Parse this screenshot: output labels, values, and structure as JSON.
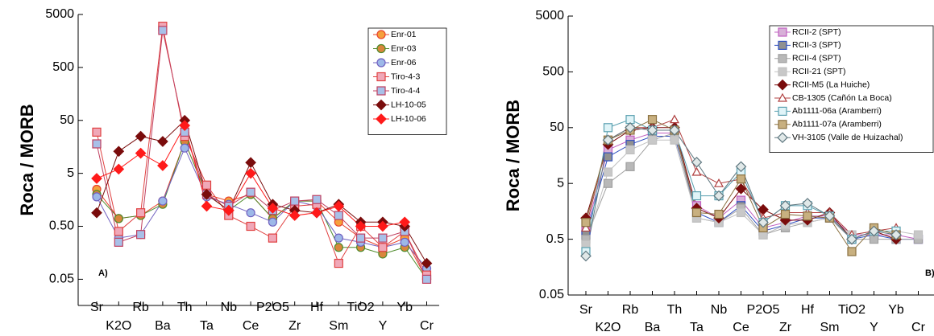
{
  "chart_data": [
    {
      "type": "line",
      "ylabel": "Roca / MORB",
      "annotation": "A)",
      "log_y": true,
      "legend": "upper right",
      "categories": [
        "Sr",
        "K2O",
        "Rb",
        "Ba",
        "Th",
        "Ta",
        "Nb",
        "Ce",
        "P2O5",
        "Zr",
        "Hf",
        "Sm",
        "TiO2",
        "Y",
        "Yb",
        "Cr"
      ],
      "ylim": [
        0.016,
        5000
      ],
      "yticks": [
        0.05,
        {
          "value": 0.5,
          "label": "0.50"
        },
        5,
        50,
        500,
        5000
      ],
      "series": [
        {
          "name": "Enr-01",
          "color": "#e8412b",
          "fill": "#f5a03c",
          "marker": "circle",
          "values": [
            2.5,
            0.7,
            0.8,
            1.5,
            20,
            2,
            1.5,
            2,
            0.7,
            1.5,
            1.5,
            0.6,
            0.3,
            0.2,
            0.3,
            0.05
          ]
        },
        {
          "name": "Enr-03",
          "color": "#4d8a2a",
          "fill": "#d9863c",
          "marker": "circle",
          "values": [
            2,
            0.7,
            0.8,
            1.3,
            20,
            2,
            1,
            2,
            0.7,
            1.5,
            1.5,
            0.2,
            0.2,
            0.15,
            0.2,
            0.05
          ]
        },
        {
          "name": "Enr-06",
          "color": "#7060c0",
          "fill": "#9db8e8",
          "marker": "circle",
          "values": [
            1.8,
            0.3,
            0.35,
            1.5,
            15,
            1.8,
            1.3,
            0.9,
            0.6,
            1.5,
            1.2,
            0.3,
            0.25,
            0.2,
            0.25,
            0.08
          ]
        },
        {
          "name": "Tiro-4-3",
          "color": "#e04040",
          "fill": "#f0a8b8",
          "marker": "square",
          "values": [
            30,
            0.4,
            0.9,
            3000,
            25,
            3,
            0.8,
            0.5,
            0.3,
            1.2,
            1.3,
            0.1,
            0.5,
            0.2,
            0.4,
            0.06
          ]
        },
        {
          "name": "Tiro-4-4",
          "color": "#c04060",
          "fill": "#a8c0e8",
          "marker": "square",
          "values": [
            18,
            0.25,
            0.35,
            2500,
            30,
            2,
            1.2,
            2.2,
            1.0,
            1.5,
            1.6,
            0.8,
            0.3,
            0.3,
            0.4,
            0.05
          ]
        },
        {
          "name": "LH-10-05",
          "color": "#7a0c0c",
          "fill": "#7a0c0c",
          "marker": "diamond",
          "values": [
            0.9,
            13,
            25,
            20,
            50,
            2,
            1,
            8,
            1.3,
            1,
            0.9,
            1.3,
            0.6,
            0.6,
            0.5,
            0.1
          ]
        },
        {
          "name": "LH-10-06",
          "color": "#ff1a1a",
          "fill": "#ff1a1a",
          "marker": "diamond",
          "values": [
            4,
            6,
            12,
            7,
            40,
            1.2,
            1,
            5,
            1.1,
            0.8,
            0.9,
            1.2,
            0.5,
            0.5,
            0.6,
            null
          ]
        }
      ]
    },
    {
      "type": "line",
      "ylabel": "Roca / MORB",
      "annotation": "B)",
      "log_y": true,
      "legend": "upper right",
      "categories": [
        "Sr",
        "K2O",
        "Rb",
        "Ba",
        "Th",
        "Ta",
        "Nb",
        "Ce",
        "P2O5",
        "Zr",
        "Hf",
        "Sm",
        "TiO2",
        "Y",
        "Yb",
        "Cr"
      ],
      "ylim": [
        0.05,
        5000
      ],
      "yticks": [
        0.05,
        0.5,
        5,
        50,
        500,
        5000
      ],
      "series": [
        {
          "name": "RCII-2 (SPT)",
          "color": "#c060c0",
          "fill": "#d8b0d8",
          "marker": "square",
          "values": [
            0.7,
            20,
            30,
            40,
            40,
            2,
            1.2,
            2.5,
            0.8,
            1,
            1.3,
            1.3,
            0.6,
            0.6,
            0.6,
            0.5
          ]
        },
        {
          "name": "RCII-3 (SPT)",
          "color": "#3050c0",
          "fill": "#909090",
          "marker": "square",
          "values": [
            0.6,
            15,
            25,
            35,
            35,
            1.5,
            1,
            2,
            0.7,
            0.9,
            1.2,
            1.2,
            0.5,
            0.6,
            0.5,
            0.5
          ]
        },
        {
          "name": "RCII-4 (SPT)",
          "color": "#a0a0a0",
          "fill": "#b8b8b8",
          "marker": "square",
          "values": [
            0.5,
            5,
            10,
            30,
            40,
            1.2,
            1,
            1.8,
            0.6,
            0.8,
            1,
            1.2,
            0.5,
            0.5,
            0.5,
            0.5
          ]
        },
        {
          "name": "RCII-21 (SPT)",
          "color": "#c0c0c0",
          "fill": "#c8c8c8",
          "marker": "square",
          "values": [
            0.4,
            8,
            20,
            30,
            30,
            1.2,
            1,
            1.5,
            0.6,
            0.9,
            1,
            1.2,
            0.6,
            0.7,
            0.7,
            0.6
          ]
        },
        {
          "name": "RCII-M5 (La Huiche)",
          "color": "#7a0c0c",
          "fill": "#7a0c0c",
          "marker": "diamond",
          "values": [
            1.2,
            25,
            45,
            50,
            50,
            1.8,
            1.2,
            4,
            1.7,
            1.1,
            1.1,
            1.5,
            0.5,
            0.7,
            0.5,
            null
          ]
        },
        {
          "name": "CB-1305 (Cañón La Boca)",
          "color": "#b04040",
          "fill": "#ffffff",
          "marker": "triangle",
          "values": [
            0.8,
            30,
            50,
            50,
            70,
            8,
            5,
            6,
            1.2,
            1.5,
            1.5,
            1.5,
            0.6,
            0.7,
            0.8,
            null
          ]
        },
        {
          "name": "Ab1111-06a (Aramberri)",
          "color": "#5aa0b0",
          "fill": "#e0f4f8",
          "marker": "square",
          "values": [
            0.3,
            50,
            70,
            45,
            45,
            3,
            3,
            8,
            1,
            2,
            2,
            1.3,
            0.5,
            0.7,
            0.7,
            null
          ]
        },
        {
          "name": "Ab1111-07a (Aramberri)",
          "color": "#8a7040",
          "fill": "#c8b080",
          "marker": "square",
          "values": [
            1,
            30,
            45,
            70,
            45,
            1.5,
            1.4,
            6,
            0.8,
            1.4,
            1.3,
            1.2,
            0.3,
            0.8,
            0.6,
            null
          ]
        },
        {
          "name": "VH-3105 (Valle de Huizachal)",
          "color": "#607880",
          "fill": "#e0e8e8",
          "marker": "diamond",
          "values": [
            0.25,
            30,
            50,
            45,
            45,
            12,
            3,
            10,
            1,
            2,
            2.2,
            1.3,
            0.5,
            0.7,
            0.6,
            null
          ]
        }
      ]
    }
  ]
}
